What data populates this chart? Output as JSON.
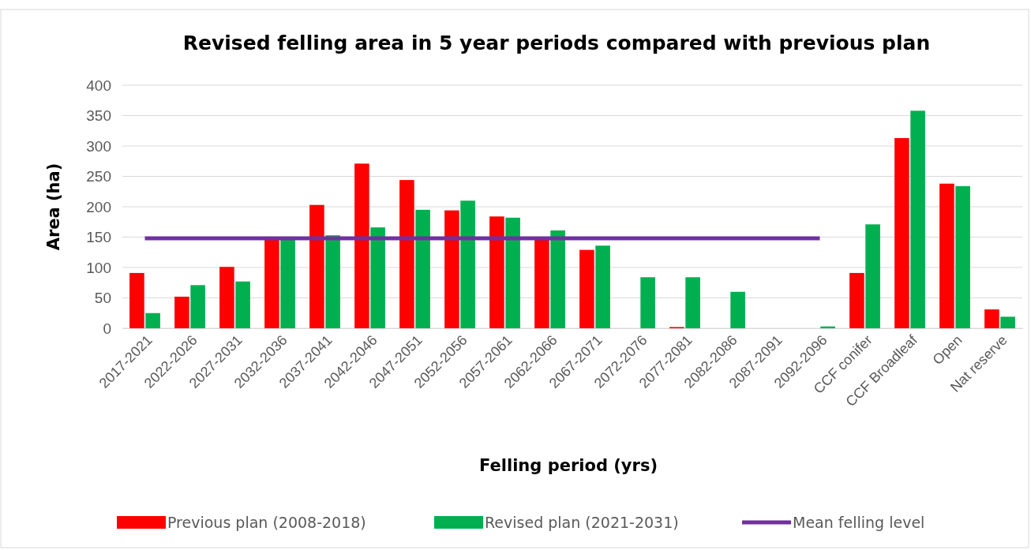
{
  "chart_data": {
    "type": "bar",
    "title": "Revised felling area in 5 year periods compared with previous plan",
    "xlabel": "Felling period (yrs)",
    "ylabel": "Area (ha)",
    "categories": [
      "2017-2021",
      "2022-2026",
      "2027-2031",
      "2032-2036",
      "2037-2041",
      "2042-2046",
      "2047-2051",
      "2052-2056",
      "2057-2061",
      "2062-2066",
      "2067-2071",
      "2072-2076",
      "2077-2081",
      "2082-2086",
      "2087-2091",
      "2092-2096",
      "CCF conifer",
      "CCF Broadleaf",
      "Open",
      "Nat reserve"
    ],
    "series": [
      {
        "name": "Previous plan (2008-2018)",
        "color": "#ff0000",
        "values": [
          91,
          52,
          101,
          146,
          203,
          271,
          244,
          194,
          184,
          146,
          129,
          0,
          2,
          0,
          0,
          0,
          91,
          313,
          238,
          31
        ]
      },
      {
        "name": "Revised plan (2021-2031)",
        "color": "#00b050",
        "values": [
          25,
          71,
          77,
          146,
          153,
          166,
          195,
          210,
          182,
          161,
          136,
          84,
          84,
          60,
          0,
          3,
          171,
          358,
          234,
          19
        ]
      },
      {
        "name": "Mean felling level",
        "type": "line",
        "color": "#7030a0",
        "values": [
          148,
          148,
          148,
          148,
          148,
          148,
          148,
          148,
          148,
          148,
          148,
          148,
          148,
          148,
          148,
          148,
          null,
          null,
          null,
          null
        ]
      }
    ],
    "ylim": [
      0,
      400
    ],
    "yticks": [
      0,
      50,
      100,
      150,
      200,
      250,
      300,
      350,
      400
    ],
    "grid": "y",
    "legend": "bottom"
  }
}
